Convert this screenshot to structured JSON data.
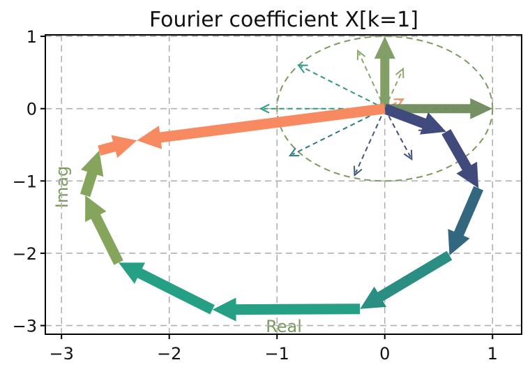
{
  "chart_data": {
    "type": "line",
    "title": "Fourier coefficient X[k=1]",
    "xlabel": "Real",
    "ylabel": "Imag",
    "xlim": [
      -3.15,
      1.27
    ],
    "ylim": [
      -3.12,
      1.02
    ],
    "x_ticks": [
      "−3",
      "−2",
      "−1",
      "0",
      "1"
    ],
    "x_tick_values": [
      -3,
      -2,
      -1,
      0,
      1
    ],
    "y_ticks": [
      "1",
      "0",
      "−1",
      "−2",
      "−3"
    ],
    "y_tick_values": [
      1,
      0,
      -1,
      -2,
      -3
    ],
    "grid": true,
    "unit_circle": {
      "center": [
        0,
        0
      ],
      "radius": 1,
      "color": "#7a9a5e"
    },
    "rotating_vectors": [
      {
        "x": 0.0,
        "y": 1.0,
        "color": "#7a9a5e",
        "bold": true
      },
      {
        "x": 1.0,
        "y": 0.0,
        "color": "#6e8a5a",
        "bold": true
      },
      {
        "x": 0.17,
        "y": 0.13,
        "color": "#f08a5d",
        "bold": false
      },
      {
        "x": 0.17,
        "y": 0.55,
        "color": "#8aa86a",
        "bold": false
      },
      {
        "x": -0.25,
        "y": 0.8,
        "color": "#8aa86a",
        "bold": false
      },
      {
        "x": -0.8,
        "y": 0.6,
        "color": "#2a9a80",
        "bold": false
      },
      {
        "x": -1.15,
        "y": 0.0,
        "color": "#2a9a80",
        "bold": false
      },
      {
        "x": -0.88,
        "y": -0.65,
        "color": "#2a7a80",
        "bold": false
      },
      {
        "x": -0.28,
        "y": -0.92,
        "color": "#3a5a7a",
        "bold": false
      },
      {
        "x": 0.25,
        "y": -0.7,
        "color": "#3f4f7e",
        "bold": false
      },
      {
        "x": 0.4,
        "y": -0.3,
        "color": "#404a7c",
        "bold": false
      }
    ],
    "cumulative_path": [
      {
        "x0": 0.0,
        "y0": 0.0,
        "x1": 0.57,
        "y1": -0.32,
        "color": "#414a7c"
      },
      {
        "x0": 0.57,
        "y0": -0.32,
        "x1": 0.87,
        "y1": -1.1,
        "color": "#404b7c"
      },
      {
        "x0": 0.87,
        "y0": -1.1,
        "x1": 0.6,
        "y1": -2.03,
        "color": "#33677f"
      },
      {
        "x0": 0.6,
        "y0": -2.03,
        "x1": -0.23,
        "y1": -2.77,
        "color": "#2a8e82"
      },
      {
        "x0": -0.23,
        "y0": -2.77,
        "x1": -1.6,
        "y1": -2.78,
        "color": "#26a085"
      },
      {
        "x0": -1.6,
        "y0": -2.78,
        "x1": -2.47,
        "y1": -2.13,
        "color": "#26a085"
      },
      {
        "x0": -2.47,
        "y0": -2.13,
        "x1": -2.78,
        "y1": -1.2,
        "color": "#86a55c"
      },
      {
        "x0": -2.78,
        "y0": -1.2,
        "x1": -2.65,
        "y1": -0.58,
        "color": "#86a55c"
      },
      {
        "x0": -2.65,
        "y0": -0.58,
        "x1": -2.3,
        "y1": -0.44,
        "color": "#f88a62"
      },
      {
        "x0": -2.3,
        "y0": -0.44,
        "x1": 0.0,
        "y1": 0.0,
        "color": "#f88a62",
        "reverse": true
      }
    ]
  }
}
